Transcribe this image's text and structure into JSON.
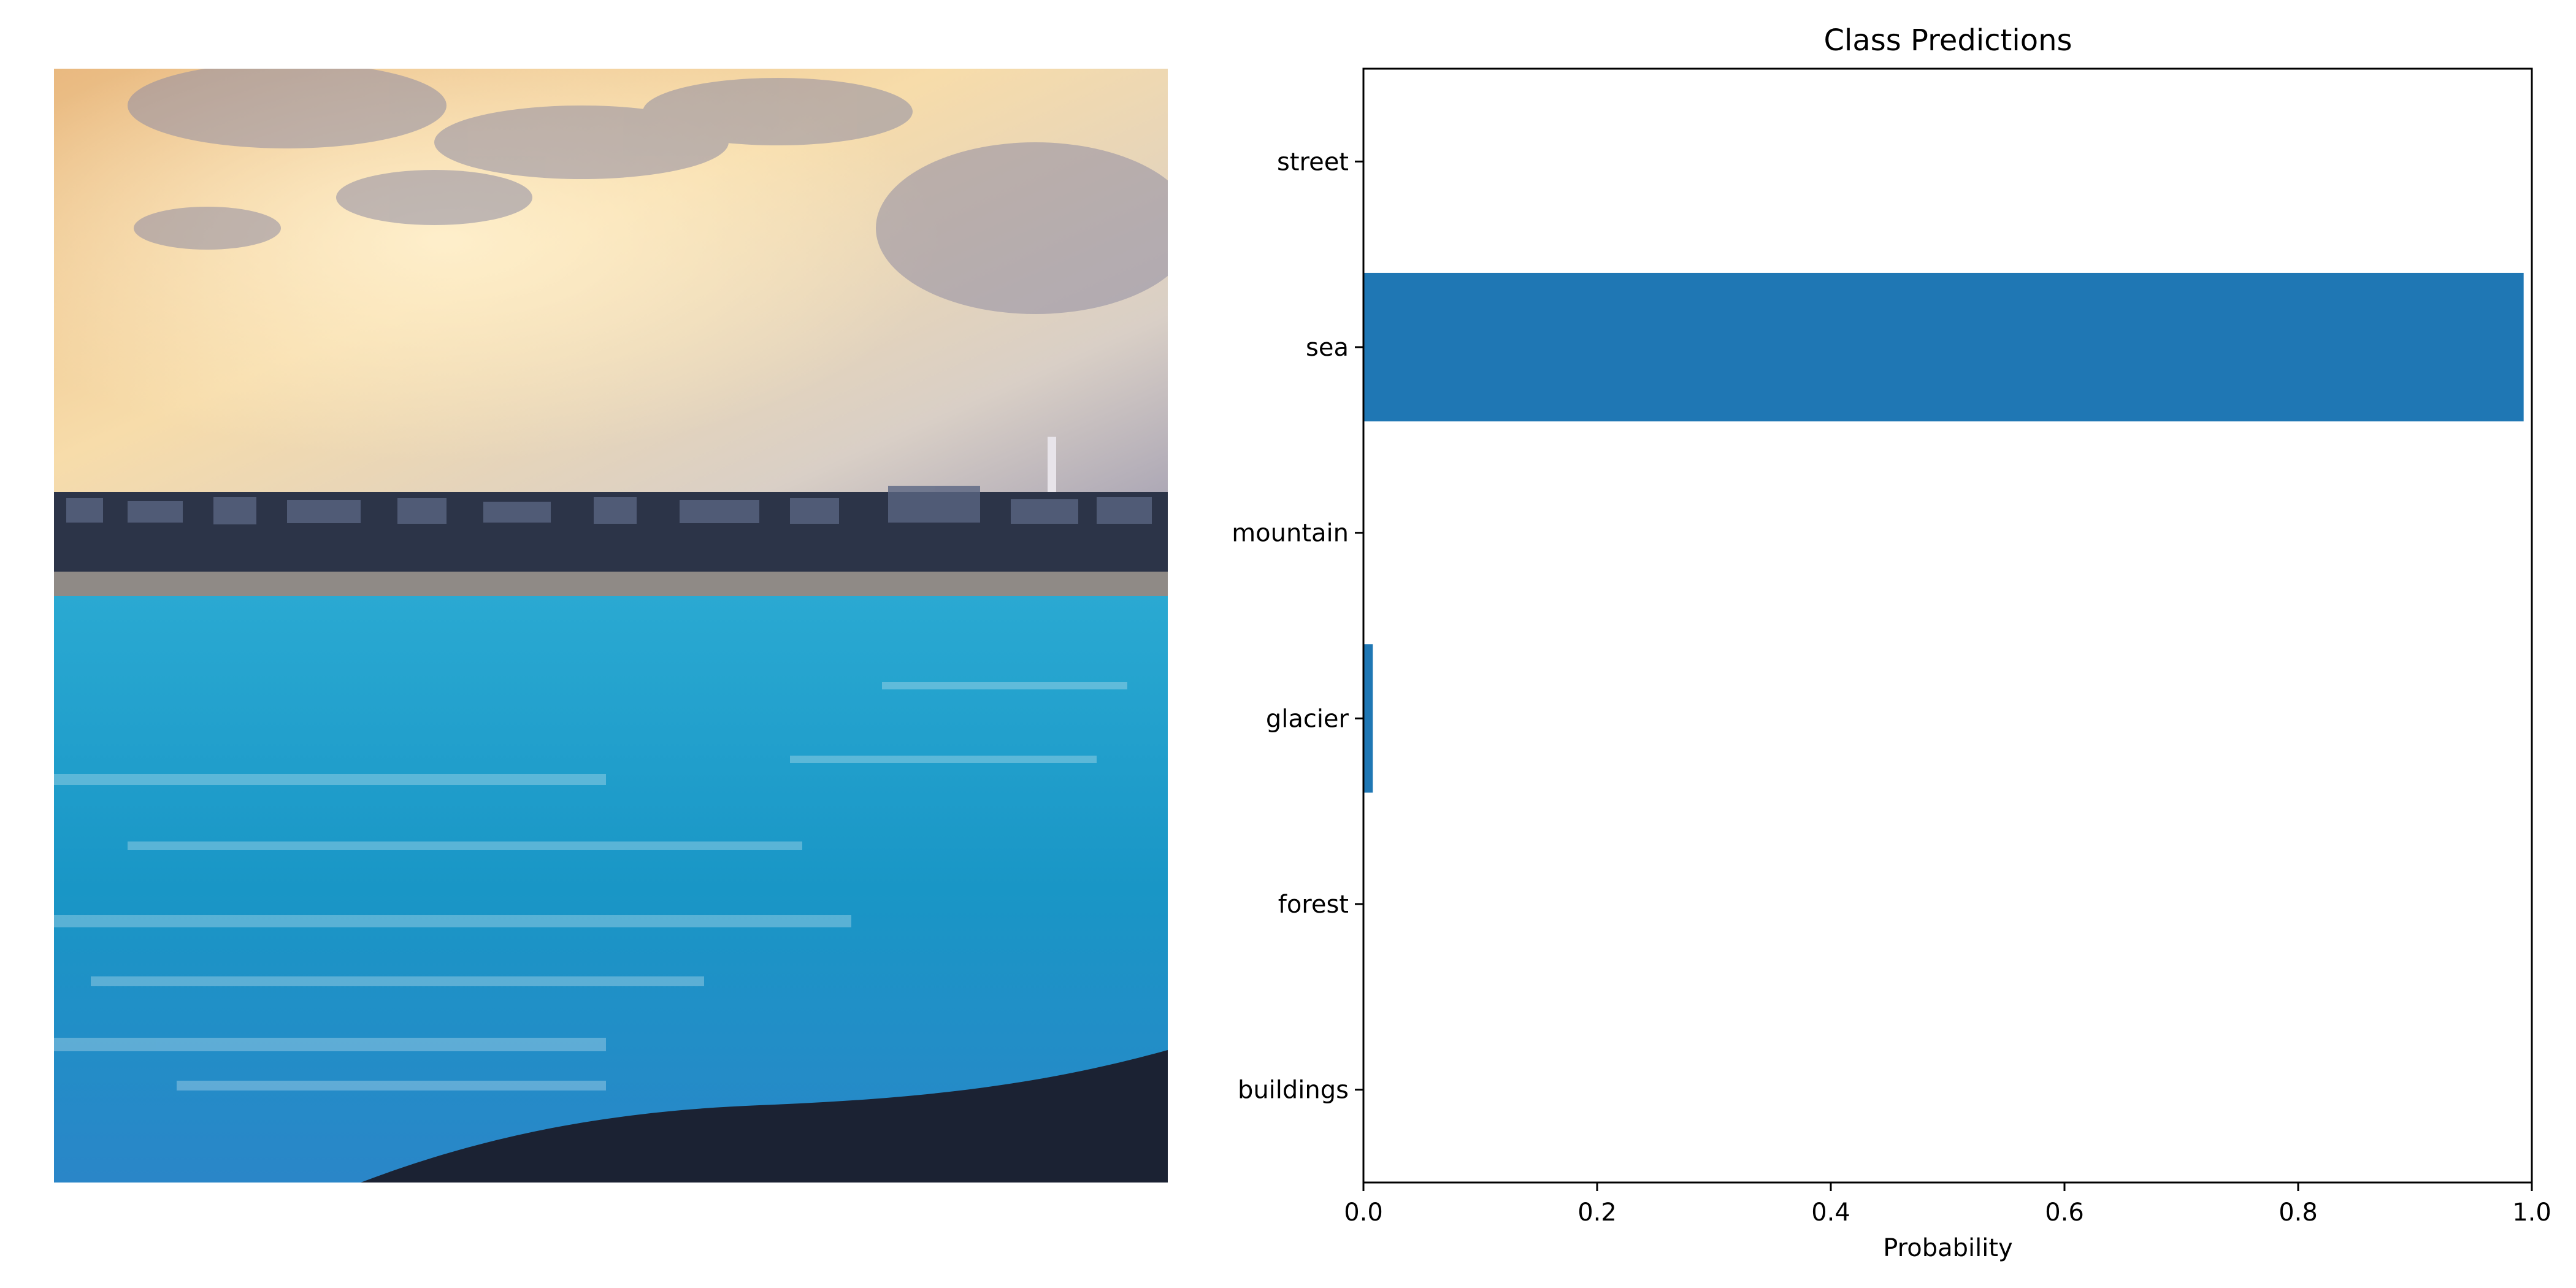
{
  "chart_data": {
    "type": "bar",
    "orientation": "horizontal",
    "title": "Class Predictions",
    "xlabel": "Probability",
    "ylabel": "",
    "categories": [
      "buildings",
      "forest",
      "glacier",
      "mountain",
      "sea",
      "street"
    ],
    "values": [
      0.0,
      0.0,
      0.008,
      0.0,
      0.993,
      0.0
    ],
    "xlim": [
      0.0,
      1.0
    ],
    "xticks": [
      "0.0",
      "0.2",
      "0.4",
      "0.6",
      "0.8",
      "1.0"
    ],
    "bar_color": "#1f77b4",
    "grid": false,
    "legend": false
  },
  "photo": {
    "description_icon": "seascape-photo",
    "colors": {
      "sky_warm": "#f3c98f",
      "sky_grey": "#a9a5b8",
      "water": "#1f95c4",
      "shore": "#1b2437"
    }
  }
}
